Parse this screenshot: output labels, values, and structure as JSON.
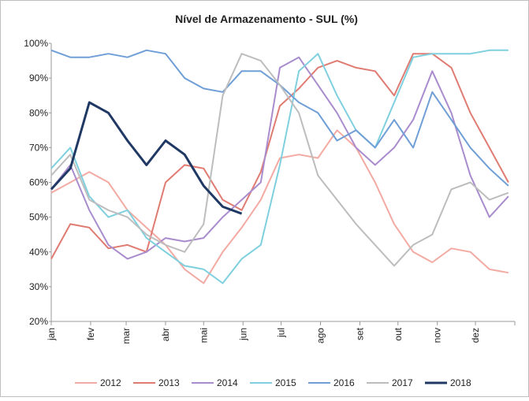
{
  "chart_data": {
    "type": "line",
    "title": "Nível de Armazenamento - SUL (%)",
    "x": [
      0,
      15,
      30,
      45,
      60,
      75,
      90,
      105,
      120,
      135,
      150,
      165,
      180,
      195,
      210,
      225,
      240,
      255,
      270,
      285,
      300,
      315,
      330,
      345,
      360
    ],
    "xlim": [
      0,
      365
    ],
    "xticks": [
      {
        "value": 0,
        "label": "jan"
      },
      {
        "value": 31,
        "label": "fev"
      },
      {
        "value": 59,
        "label": "mar"
      },
      {
        "value": 90,
        "label": "abr"
      },
      {
        "value": 120,
        "label": "mai"
      },
      {
        "value": 151,
        "label": "jun"
      },
      {
        "value": 181,
        "label": "jul"
      },
      {
        "value": 212,
        "label": "ago"
      },
      {
        "value": 243,
        "label": "set"
      },
      {
        "value": 273,
        "label": "out"
      },
      {
        "value": 304,
        "label": "nov"
      },
      {
        "value": 334,
        "label": "dez"
      }
    ],
    "ylim": [
      20,
      100
    ],
    "yticks": [
      {
        "value": 20,
        "label": "20%"
      },
      {
        "value": 30,
        "label": "30%"
      },
      {
        "value": 40,
        "label": "40%"
      },
      {
        "value": 50,
        "label": "50%"
      },
      {
        "value": 60,
        "label": "60%"
      },
      {
        "value": 70,
        "label": "70%"
      },
      {
        "value": 80,
        "label": "80%"
      },
      {
        "value": 90,
        "label": "90%"
      },
      {
        "value": 100,
        "label": "100%"
      }
    ],
    "series": [
      {
        "name": "2012",
        "color": "#f2aaa2",
        "width": 2,
        "values": [
          57,
          60,
          63,
          60,
          52,
          47,
          42,
          35,
          31,
          40,
          47,
          55,
          67,
          68,
          67,
          75,
          70,
          60,
          48,
          40,
          37,
          41,
          40,
          35,
          34
        ]
      },
      {
        "name": "2013",
        "color": "#e07b72",
        "width": 2,
        "values": [
          38,
          48,
          47,
          41,
          42,
          40,
          60,
          65,
          64,
          55,
          52,
          63,
          82,
          87,
          93,
          95,
          93,
          92,
          85,
          97,
          97,
          93,
          80,
          70,
          60
        ]
      },
      {
        "name": "2014",
        "color": "#a98ccd",
        "width": 2,
        "values": [
          58,
          65,
          52,
          42,
          38,
          40,
          44,
          43,
          44,
          50,
          55,
          60,
          93,
          96,
          88,
          80,
          70,
          65,
          70,
          78,
          92,
          80,
          62,
          50,
          56
        ]
      },
      {
        "name": "2015",
        "color": "#7fd0df",
        "width": 2,
        "values": [
          64,
          70,
          56,
          50,
          52,
          44,
          40,
          36,
          35,
          31,
          38,
          42,
          65,
          92,
          97,
          85,
          75,
          70,
          83,
          96,
          97,
          97,
          97,
          98,
          98
        ]
      },
      {
        "name": "2016",
        "color": "#6f9fd6",
        "width": 2,
        "values": [
          98,
          96,
          96,
          97,
          96,
          98,
          97,
          90,
          87,
          86,
          92,
          92,
          88,
          83,
          80,
          72,
          75,
          70,
          78,
          70,
          86,
          78,
          70,
          64,
          59
        ]
      },
      {
        "name": "2017",
        "color": "#bdbdbd",
        "width": 2,
        "values": [
          62,
          68,
          55,
          52,
          50,
          45,
          42,
          40,
          48,
          85,
          97,
          95,
          88,
          80,
          62,
          55,
          48,
          42,
          36,
          42,
          45,
          58,
          60,
          55,
          57
        ]
      },
      {
        "name": "2018",
        "color": "#1f3864",
        "width": 3,
        "values": [
          58,
          64,
          83,
          80,
          72,
          65,
          72,
          68,
          59,
          53,
          51,
          null,
          null,
          null,
          null,
          null,
          null,
          null,
          null,
          null,
          null,
          null,
          null,
          null,
          null
        ]
      }
    ]
  }
}
